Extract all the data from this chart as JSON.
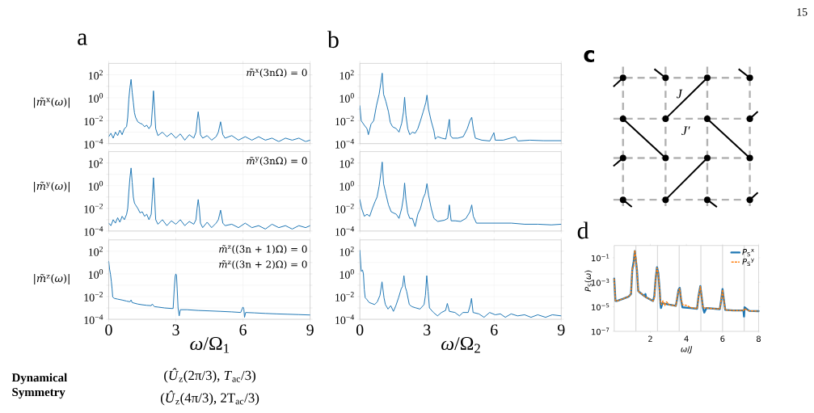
{
  "chart_data": [
    {
      "type": "line",
      "title": "a",
      "ylabel": "|*m̃*$^{x}$(*ω*)|",
      "annotations": [
        "*m̃*$^{x}$(3nΩ) = 0"
      ],
      "color": "#1f77b4",
      "log": "y",
      "grid": true,
      "tick_labels": "y",
      "xlim": [
        0,
        9
      ],
      "xticks": [
        0,
        3,
        6,
        9
      ],
      "ylim": [
        0.0001,
        1000
      ],
      "yticks": [
        {
          "value": 0.0001,
          "label": "10$^{−4}$"
        },
        {
          "value": 0.001,
          "label": null
        },
        {
          "value": 0.01,
          "label": "10$^{−2}$"
        },
        {
          "value": 0.1,
          "label": null
        },
        {
          "value": 1,
          "label": "10$^{0}$"
        },
        {
          "value": 10,
          "label": null
        },
        {
          "value": 100,
          "label": "10$^{2}$"
        }
      ],
      "x": [
        0,
        0.1,
        0.2,
        0.3,
        0.4,
        0.5,
        0.6,
        0.7,
        0.8,
        0.85,
        0.9,
        0.95,
        1.0,
        1.05,
        1.1,
        1.15,
        1.2,
        1.3,
        1.4,
        1.5,
        1.6,
        1.7,
        1.8,
        1.9,
        1.95,
        2.0,
        2.05,
        2.1,
        2.2,
        2.4,
        2.6,
        2.8,
        3.0,
        3.2,
        3.4,
        3.6,
        3.8,
        3.9,
        3.95,
        4.0,
        4.05,
        4.1,
        4.2,
        4.4,
        4.6,
        4.8,
        4.9,
        5.0,
        5.1,
        5.2,
        5.5,
        5.8,
        6.1,
        6.4,
        6.7,
        7.0,
        7.3,
        7.6,
        7.9,
        8.2,
        8.5,
        8.8,
        9.0
      ],
      "values": [
        0.0004,
        0.0008,
        0.0003,
        0.001,
        0.0005,
        0.0015,
        0.0006,
        0.002,
        0.003,
        0.02,
        0.8,
        8,
        40,
        3,
        0.4,
        0.05,
        0.02,
        0.008,
        0.006,
        0.005,
        0.003,
        0.004,
        0.002,
        0.004,
        0.1,
        4,
        0.1,
        0.002,
        0.0005,
        0.001,
        0.0004,
        0.0008,
        0.0003,
        0.0007,
        0.0002,
        0.0006,
        0.0003,
        0.001,
        0.01,
        0.06,
        0.01,
        0.0006,
        0.0003,
        0.0005,
        0.0002,
        0.0004,
        0.001,
        0.008,
        0.0006,
        0.0003,
        0.0005,
        0.0002,
        0.0004,
        0.0002,
        0.0004,
        0.0002,
        0.0003,
        0.00015,
        0.0003,
        0.0002,
        0.0003,
        0.00015,
        0.0002
      ]
    },
    {
      "type": "line",
      "ylabel": "|*m̃*$^{y}$(*ω*)|",
      "annotations": [
        "*m̃*$^{y}$(3nΩ) = 0"
      ],
      "color": "#1f77b4",
      "log": "y",
      "grid": true,
      "tick_labels": "y",
      "xlim": [
        0,
        9
      ],
      "xticks": [
        0,
        3,
        6,
        9
      ],
      "ylim": [
        0.0001,
        1000
      ],
      "yticks": [
        {
          "value": 0.0001,
          "label": "10$^{−4}$"
        },
        {
          "value": 0.001,
          "label": null
        },
        {
          "value": 0.01,
          "label": "10$^{−2}$"
        },
        {
          "value": 0.1,
          "label": null
        },
        {
          "value": 1,
          "label": "10$^{0}$"
        },
        {
          "value": 10,
          "label": null
        },
        {
          "value": 100,
          "label": "10$^{2}$"
        }
      ],
      "x": [
        0,
        0.1,
        0.2,
        0.3,
        0.4,
        0.5,
        0.6,
        0.7,
        0.8,
        0.85,
        0.9,
        0.95,
        1.0,
        1.05,
        1.1,
        1.15,
        1.2,
        1.3,
        1.4,
        1.5,
        1.6,
        1.7,
        1.8,
        1.9,
        1.95,
        2.0,
        2.05,
        2.1,
        2.2,
        2.4,
        2.6,
        2.8,
        3.0,
        3.2,
        3.4,
        3.6,
        3.8,
        3.9,
        3.95,
        4.0,
        4.05,
        4.1,
        4.2,
        4.4,
        4.6,
        4.8,
        4.9,
        5.0,
        5.1,
        5.2,
        5.5,
        5.8,
        6.1,
        6.4,
        6.7,
        7.0,
        7.3,
        7.6,
        7.9,
        8.2,
        8.5,
        8.8,
        9.0
      ],
      "values": [
        0.0005,
        0.0003,
        0.001,
        0.0005,
        0.0015,
        0.0006,
        0.002,
        0.001,
        0.003,
        0.01,
        0.3,
        5,
        36,
        2,
        0.1,
        0.03,
        0.02,
        0.01,
        0.004,
        0.005,
        0.002,
        0.003,
        0.001,
        0.003,
        0.1,
        5,
        0.1,
        0.001,
        0.0004,
        0.001,
        0.0003,
        0.0008,
        0.0004,
        0.001,
        0.0003,
        0.0007,
        0.0004,
        0.001,
        0.01,
        0.06,
        0.01,
        0.0005,
        0.0002,
        0.0006,
        0.0002,
        0.0005,
        0.001,
        0.007,
        0.0005,
        0.0003,
        0.0004,
        0.0002,
        0.0005,
        0.0002,
        0.0003,
        0.00015,
        0.0004,
        0.0002,
        0.0003,
        0.00015,
        0.0003,
        0.0002,
        0.0003
      ]
    },
    {
      "type": "line",
      "ylabel": "|*m̃*$^{z}$(*ω*)|",
      "xlabel": "*ω*/Ω$_{1}$",
      "annotations": [
        "*m̃*$^{z}$((3n + 1)Ω) = 0",
        "*m̃*$^{z}$((3n + 2)Ω) = 0"
      ],
      "color": "#1f77b4",
      "log": "y",
      "grid": true,
      "xlim": [
        0,
        9
      ],
      "xticks": [
        0,
        3,
        6,
        9
      ],
      "ylim": [
        0.0001,
        1000
      ],
      "yticks": [
        {
          "value": 0.0001,
          "label": "10$^{−4}$"
        },
        {
          "value": 0.001,
          "label": null
        },
        {
          "value": 0.01,
          "label": "10$^{−2}$"
        },
        {
          "value": 0.1,
          "label": null
        },
        {
          "value": 1,
          "label": "10$^{0}$"
        },
        {
          "value": 10,
          "label": null
        },
        {
          "value": 100,
          "label": "10$^{2}$"
        }
      ],
      "x": [
        0,
        0.04,
        0.08,
        0.12,
        0.15,
        0.18,
        0.25,
        0.4,
        0.6,
        0.8,
        0.95,
        1.0,
        1.05,
        1.1,
        1.3,
        1.5,
        1.7,
        1.9,
        1.95,
        2.0,
        2.05,
        2.2,
        2.5,
        2.8,
        2.88,
        2.93,
        2.97,
        3.0,
        3.03,
        3.06,
        3.1,
        3.15,
        3.2,
        3.5,
        4.0,
        4.5,
        5.0,
        5.5,
        5.9,
        5.97,
        6.0,
        6.04,
        6.07,
        6.12,
        6.5,
        7.0,
        7.5,
        8.0,
        8.5,
        9.0
      ],
      "values": [
        13,
        2.6,
        0.9,
        0.2,
        0.05,
        0.009,
        0.007,
        0.006,
        0.005,
        0.004,
        0.0035,
        0.005,
        0.003,
        0.0028,
        0.0022,
        0.0019,
        0.0017,
        0.0016,
        0.0022,
        0.0016,
        0.0013,
        0.0012,
        0.001,
        0.0009,
        0.0009,
        0.05,
        0.6,
        1.0,
        0.7,
        0.05,
        0.001,
        0.0002,
        0.0007,
        0.0007,
        0.0006,
        0.00055,
        0.0005,
        0.00045,
        0.0004,
        0.0009,
        0.0012,
        0.0008,
        0.00015,
        0.0004,
        0.00037,
        0.00033,
        0.0003,
        0.00028,
        0.00026,
        0.00024
      ]
    },
    {
      "type": "line",
      "title": "b",
      "color": "#1f77b4",
      "log": "y",
      "grid": true,
      "tick_labels": "y",
      "xlim": [
        0,
        9
      ],
      "xticks": [
        0,
        3,
        6,
        9
      ],
      "ylim": [
        0.0001,
        1000
      ],
      "yticks": [
        {
          "value": 0.0001,
          "label": "10$^{−4}$"
        },
        {
          "value": 0.001,
          "label": null
        },
        {
          "value": 0.01,
          "label": "10$^{−2}$"
        },
        {
          "value": 0.1,
          "label": null
        },
        {
          "value": 1,
          "label": "10$^{0}$"
        },
        {
          "value": 10,
          "label": null
        },
        {
          "value": 100,
          "label": "10$^{2}$"
        }
      ],
      "x": [
        0,
        0.06,
        0.2,
        0.32,
        0.38,
        0.5,
        0.62,
        0.74,
        0.86,
        0.94,
        1.0,
        1.06,
        1.16,
        1.28,
        1.36,
        1.46,
        1.63,
        1.75,
        1.87,
        1.95,
        2.0,
        2.06,
        2.14,
        2.23,
        2.35,
        2.47,
        2.59,
        2.71,
        2.83,
        2.89,
        2.95,
        3.0,
        3.07,
        3.19,
        3.31,
        3.37,
        3.48,
        3.66,
        3.84,
        3.93,
        4.0,
        4.05,
        4.14,
        4.38,
        4.62,
        4.8,
        4.92,
        5.0,
        5.07,
        5.16,
        5.45,
        5.81,
        5.99,
        6.05,
        6.41,
        6.95,
        7.06,
        7.6,
        8.2,
        9.0
      ],
      "values": [
        0.2,
        0.01,
        0.004,
        0.002,
        0.0006,
        0.005,
        0.01,
        0.2,
        2,
        20,
        140,
        2,
        0.5,
        0.06,
        0.007,
        0.003,
        0.002,
        0.001,
        0.006,
        0.06,
        1.1,
        0.03,
        0.002,
        0.0006,
        0.001,
        0.0008,
        0.002,
        0.01,
        0.06,
        0.15,
        0.4,
        1.7,
        0.1,
        0.009,
        0.0013,
        0.00025,
        0.0004,
        0.0003,
        0.00025,
        0.002,
        0.013,
        0.0005,
        0.0003,
        0.0003,
        0.0004,
        0.002,
        0.01,
        0.02,
        0.002,
        0.0003,
        0.0002,
        0.00017,
        0.0009,
        0.0002,
        0.0002,
        0.0004,
        0.00017,
        0.0002,
        0.00018,
        0.00018
      ]
    },
    {
      "type": "line",
      "color": "#1f77b4",
      "log": "y",
      "grid": true,
      "tick_labels": "y",
      "xlim": [
        0,
        9
      ],
      "xticks": [
        0,
        3,
        6,
        9
      ],
      "ylim": [
        0.0001,
        1000
      ],
      "yticks": [
        {
          "value": 0.0001,
          "label": "10$^{−4}$"
        },
        {
          "value": 0.001,
          "label": null
        },
        {
          "value": 0.01,
          "label": "10$^{−2}$"
        },
        {
          "value": 0.1,
          "label": null
        },
        {
          "value": 1,
          "label": "10$^{0}$"
        },
        {
          "value": 10,
          "label": null
        },
        {
          "value": 100,
          "label": "10$^{2}$"
        }
      ],
      "x": [
        0,
        0.08,
        0.2,
        0.32,
        0.44,
        0.56,
        0.68,
        0.77,
        0.86,
        0.94,
        1.0,
        1.06,
        1.16,
        1.28,
        1.4,
        1.63,
        1.75,
        1.87,
        1.95,
        2.0,
        2.06,
        2.14,
        2.23,
        2.35,
        2.47,
        2.59,
        2.71,
        2.83,
        2.92,
        3.0,
        3.07,
        3.19,
        3.31,
        3.48,
        3.78,
        3.93,
        4.0,
        4.08,
        4.26,
        4.5,
        4.74,
        4.92,
        5.0,
        5.07,
        5.21,
        5.57,
        6.17,
        6.77,
        7.36,
        7.96,
        8.56,
        9.0
      ],
      "values": [
        0.06,
        0.01,
        0.002,
        0.003,
        0.002,
        0.01,
        0.04,
        0.1,
        0.9,
        13,
        120,
        1.5,
        0.2,
        0.02,
        0.005,
        0.003,
        0.0013,
        0.01,
        0.1,
        1.7,
        0.06,
        0.004,
        0.0013,
        0.0013,
        0.00025,
        0.003,
        0.01,
        0.08,
        0.2,
        1.5,
        0.15,
        0.01,
        0.0013,
        0.0007,
        0.0009,
        0.0013,
        0.02,
        0.0008,
        0.0008,
        0.0007,
        0.0013,
        0.005,
        0.02,
        0.002,
        0.0005,
        0.0005,
        0.0005,
        0.0005,
        0.0004,
        0.0004,
        0.00035,
        0.0004
      ]
    },
    {
      "type": "line",
      "xlabel": "*ω*/Ω$_{2}$",
      "color": "#1f77b4",
      "log": "y",
      "grid": true,
      "xlim": [
        0,
        9
      ],
      "xticks": [
        0,
        3,
        6,
        9
      ],
      "ylim": [
        0.0001,
        1000
      ],
      "yticks": [
        {
          "value": 0.0001,
          "label": "10$^{−4}$"
        },
        {
          "value": 0.001,
          "label": null
        },
        {
          "value": 0.01,
          "label": "10$^{−2}$"
        },
        {
          "value": 0.1,
          "label": null
        },
        {
          "value": 1,
          "label": "10$^{0}$"
        },
        {
          "value": 10,
          "label": null
        },
        {
          "value": 100,
          "label": "10$^{2}$"
        }
      ],
      "x": [
        0,
        0.06,
        0.12,
        0.16,
        0.2,
        0.24,
        0.3,
        0.42,
        0.66,
        0.78,
        0.9,
        0.99,
        1.08,
        1.14,
        1.26,
        1.38,
        1.5,
        1.61,
        1.73,
        1.85,
        1.91,
        1.97,
        2.03,
        2.09,
        2.21,
        2.33,
        2.51,
        2.69,
        2.87,
        2.93,
        2.99,
        3.05,
        3.11,
        3.29,
        3.47,
        3.65,
        3.83,
        3.91,
        4.0,
        4.25,
        4.45,
        4.61,
        4.84,
        4.94,
        4.99,
        5.06,
        5.32,
        5.55,
        5.8,
        6.05,
        6.28,
        6.5,
        6.76,
        7.05,
        7.36,
        7.65,
        7.95,
        8.3,
        8.6,
        9.0
      ],
      "values": [
        120,
        1.7,
        2.2,
        1,
        0.04,
        0.008,
        0.006,
        0.003,
        0.002,
        0.0035,
        0.013,
        0.2,
        0.008,
        0.002,
        0.0008,
        0.0016,
        0.0005,
        0.0016,
        0.008,
        0.05,
        0.08,
        0.7,
        0.07,
        0.03,
        0.002,
        0.0013,
        0.001,
        0.0008,
        0.002,
        0.013,
        0.7,
        0.03,
        0.001,
        0.0004,
        0.0002,
        0.0004,
        0.0006,
        0.0025,
        0.0005,
        0.0004,
        0.0002,
        0.0004,
        0.0004,
        0.002,
        0.007,
        0.0004,
        0.0003,
        0.00015,
        0.0004,
        0.00025,
        0.0003,
        0.00015,
        0.0003,
        0.0002,
        0.00025,
        0.00015,
        0.00025,
        0.00015,
        0.00025,
        0.0002
      ]
    },
    {
      "type": "other",
      "title": "c",
      "annotations": [
        "J",
        "J′"
      ]
    },
    {
      "type": "line",
      "title": "d",
      "ylabel": "*P*$_{S}$(*ω*)",
      "xlabel": "*ω*/*J*",
      "log": "y",
      "legend": "top right",
      "xlim": [
        0,
        8
      ],
      "xticks": [
        2,
        4,
        6,
        8
      ],
      "ylim": [
        1e-07,
        1
      ],
      "yticks": [
        {
          "value": 1e-07,
          "label": "10$^{−7}$"
        },
        {
          "value": 1e-05,
          "label": "10$^{−5}$"
        },
        {
          "value": 0.001,
          "label": "10$^{−3}$"
        },
        {
          "value": 0.1,
          "label": "10$^{−1}$"
        }
      ],
      "ref_lines": [
        {
          "axis": "x",
          "value": 1.2,
          "color": "#d9d9d9"
        },
        {
          "axis": "x",
          "value": 2.4,
          "color": "#d9d9d9"
        },
        {
          "axis": "x",
          "value": 3.6,
          "color": "#d9d9d9"
        },
        {
          "axis": "x",
          "value": 4.8,
          "color": "#d9d9d9"
        },
        {
          "axis": "x",
          "value": 6.0,
          "color": "#d9d9d9"
        },
        {
          "axis": "x",
          "value": 7.2,
          "color": "#d9d9d9"
        }
      ],
      "series": [
        {
          "name": "*P*$_{S}$$^{x}$",
          "color": "#1f77b4",
          "line_style": "solid",
          "x": [
            0,
            0.07,
            0.15,
            0.5,
            0.81,
            0.93,
            1.0,
            1.08,
            1.14,
            1.2,
            1.26,
            1.33,
            1.41,
            1.7,
            1.73,
            1.76,
            2.15,
            2.22,
            2.3,
            2.37,
            2.44,
            2.52,
            2.56,
            2.59,
            2.67,
            3.04,
            3.41,
            3.48,
            3.56,
            3.63,
            3.7,
            3.78,
            4.22,
            4.59,
            4.67,
            4.77,
            4.84,
            4.92,
            4.99,
            5.11,
            5.85,
            5.93,
            6.0,
            6.07,
            6.15,
            6.59,
            7.16,
            7.19,
            7.22,
            7.48,
            8.0
          ],
          "values": [
            0.002,
            3e-05,
            3e-05,
            4.5e-05,
            7e-05,
            0.00011,
            0.01,
            0.05,
            0.35,
            0.06,
            0.01,
            0.0002,
            0.00015,
            7e-05,
            0.00011,
            6e-05,
            3e-05,
            7e-05,
            0.0023,
            0.017,
            0.006,
            0.0002,
            2e-05,
            8e-06,
            2e-05,
            1.5e-05,
            1.2e-05,
            4e-05,
            0.00024,
            0.00035,
            4e-05,
            9e-06,
            8e-06,
            7e-06,
            7e-05,
            0.0005,
            7e-05,
            8e-06,
            3.4e-06,
            8e-06,
            6.5e-06,
            4e-05,
            0.00028,
            4e-05,
            5.6e-06,
            5e-06,
            5e-06,
            1.6e-06,
            9e-06,
            4.7e-06,
            4.4e-06
          ]
        },
        {
          "name": "*P*$_{S}$$^{y}$",
          "color": "#ff7f0e",
          "line_style": "dashed",
          "x": [
            0,
            0.07,
            0.15,
            0.5,
            0.81,
            0.93,
            1.0,
            1.08,
            1.14,
            1.2,
            1.26,
            1.33,
            1.41,
            1.7,
            1.76,
            2.15,
            2.22,
            2.3,
            2.37,
            2.44,
            2.52,
            2.56,
            2.62,
            2.7,
            2.8,
            2.9,
            3.04,
            3.41,
            3.48,
            3.56,
            3.63,
            3.7,
            3.78,
            4.0,
            4.22,
            4.59,
            4.67,
            4.77,
            4.84,
            4.92,
            5.11,
            5.85,
            5.93,
            6.0,
            6.07,
            6.15,
            6.59,
            7.16,
            7.2,
            7.48,
            8.0
          ],
          "values": [
            0.002,
            3e-05,
            3e-05,
            4.5e-05,
            7e-05,
            0.00011,
            0.015,
            0.02,
            0.4,
            0.1,
            0.01,
            0.0002,
            0.00015,
            7e-05,
            6e-05,
            3e-05,
            5e-05,
            0.002,
            0.015,
            0.005,
            0.0002,
            2e-05,
            1.5e-05,
            3e-05,
            1.3e-05,
            2.5e-05,
            1.5e-05,
            1.2e-05,
            5e-05,
            0.0002,
            0.0003,
            5e-05,
            1.5e-05,
            1.3e-05,
            9e-06,
            7e-06,
            6e-05,
            0.00045,
            6e-05,
            8e-06,
            8e-06,
            6.5e-06,
            4e-05,
            0.00025,
            4e-05,
            5.6e-06,
            5e-06,
            5e-06,
            7e-06,
            4.7e-06,
            4.4e-06
          ]
        }
      ]
    },
    {
      "type": "other",
      "annotations": [
        "Dynamical Symmetry",
        "(*Û*$_{z}$(2π/3), *T*$_{ac}$/3)",
        "(*Û*$_{z}$(4π/3), 2T$_{ac}$/3)"
      ]
    },
    {
      "type": "other",
      "annotations": [
        "15"
      ]
    }
  ]
}
